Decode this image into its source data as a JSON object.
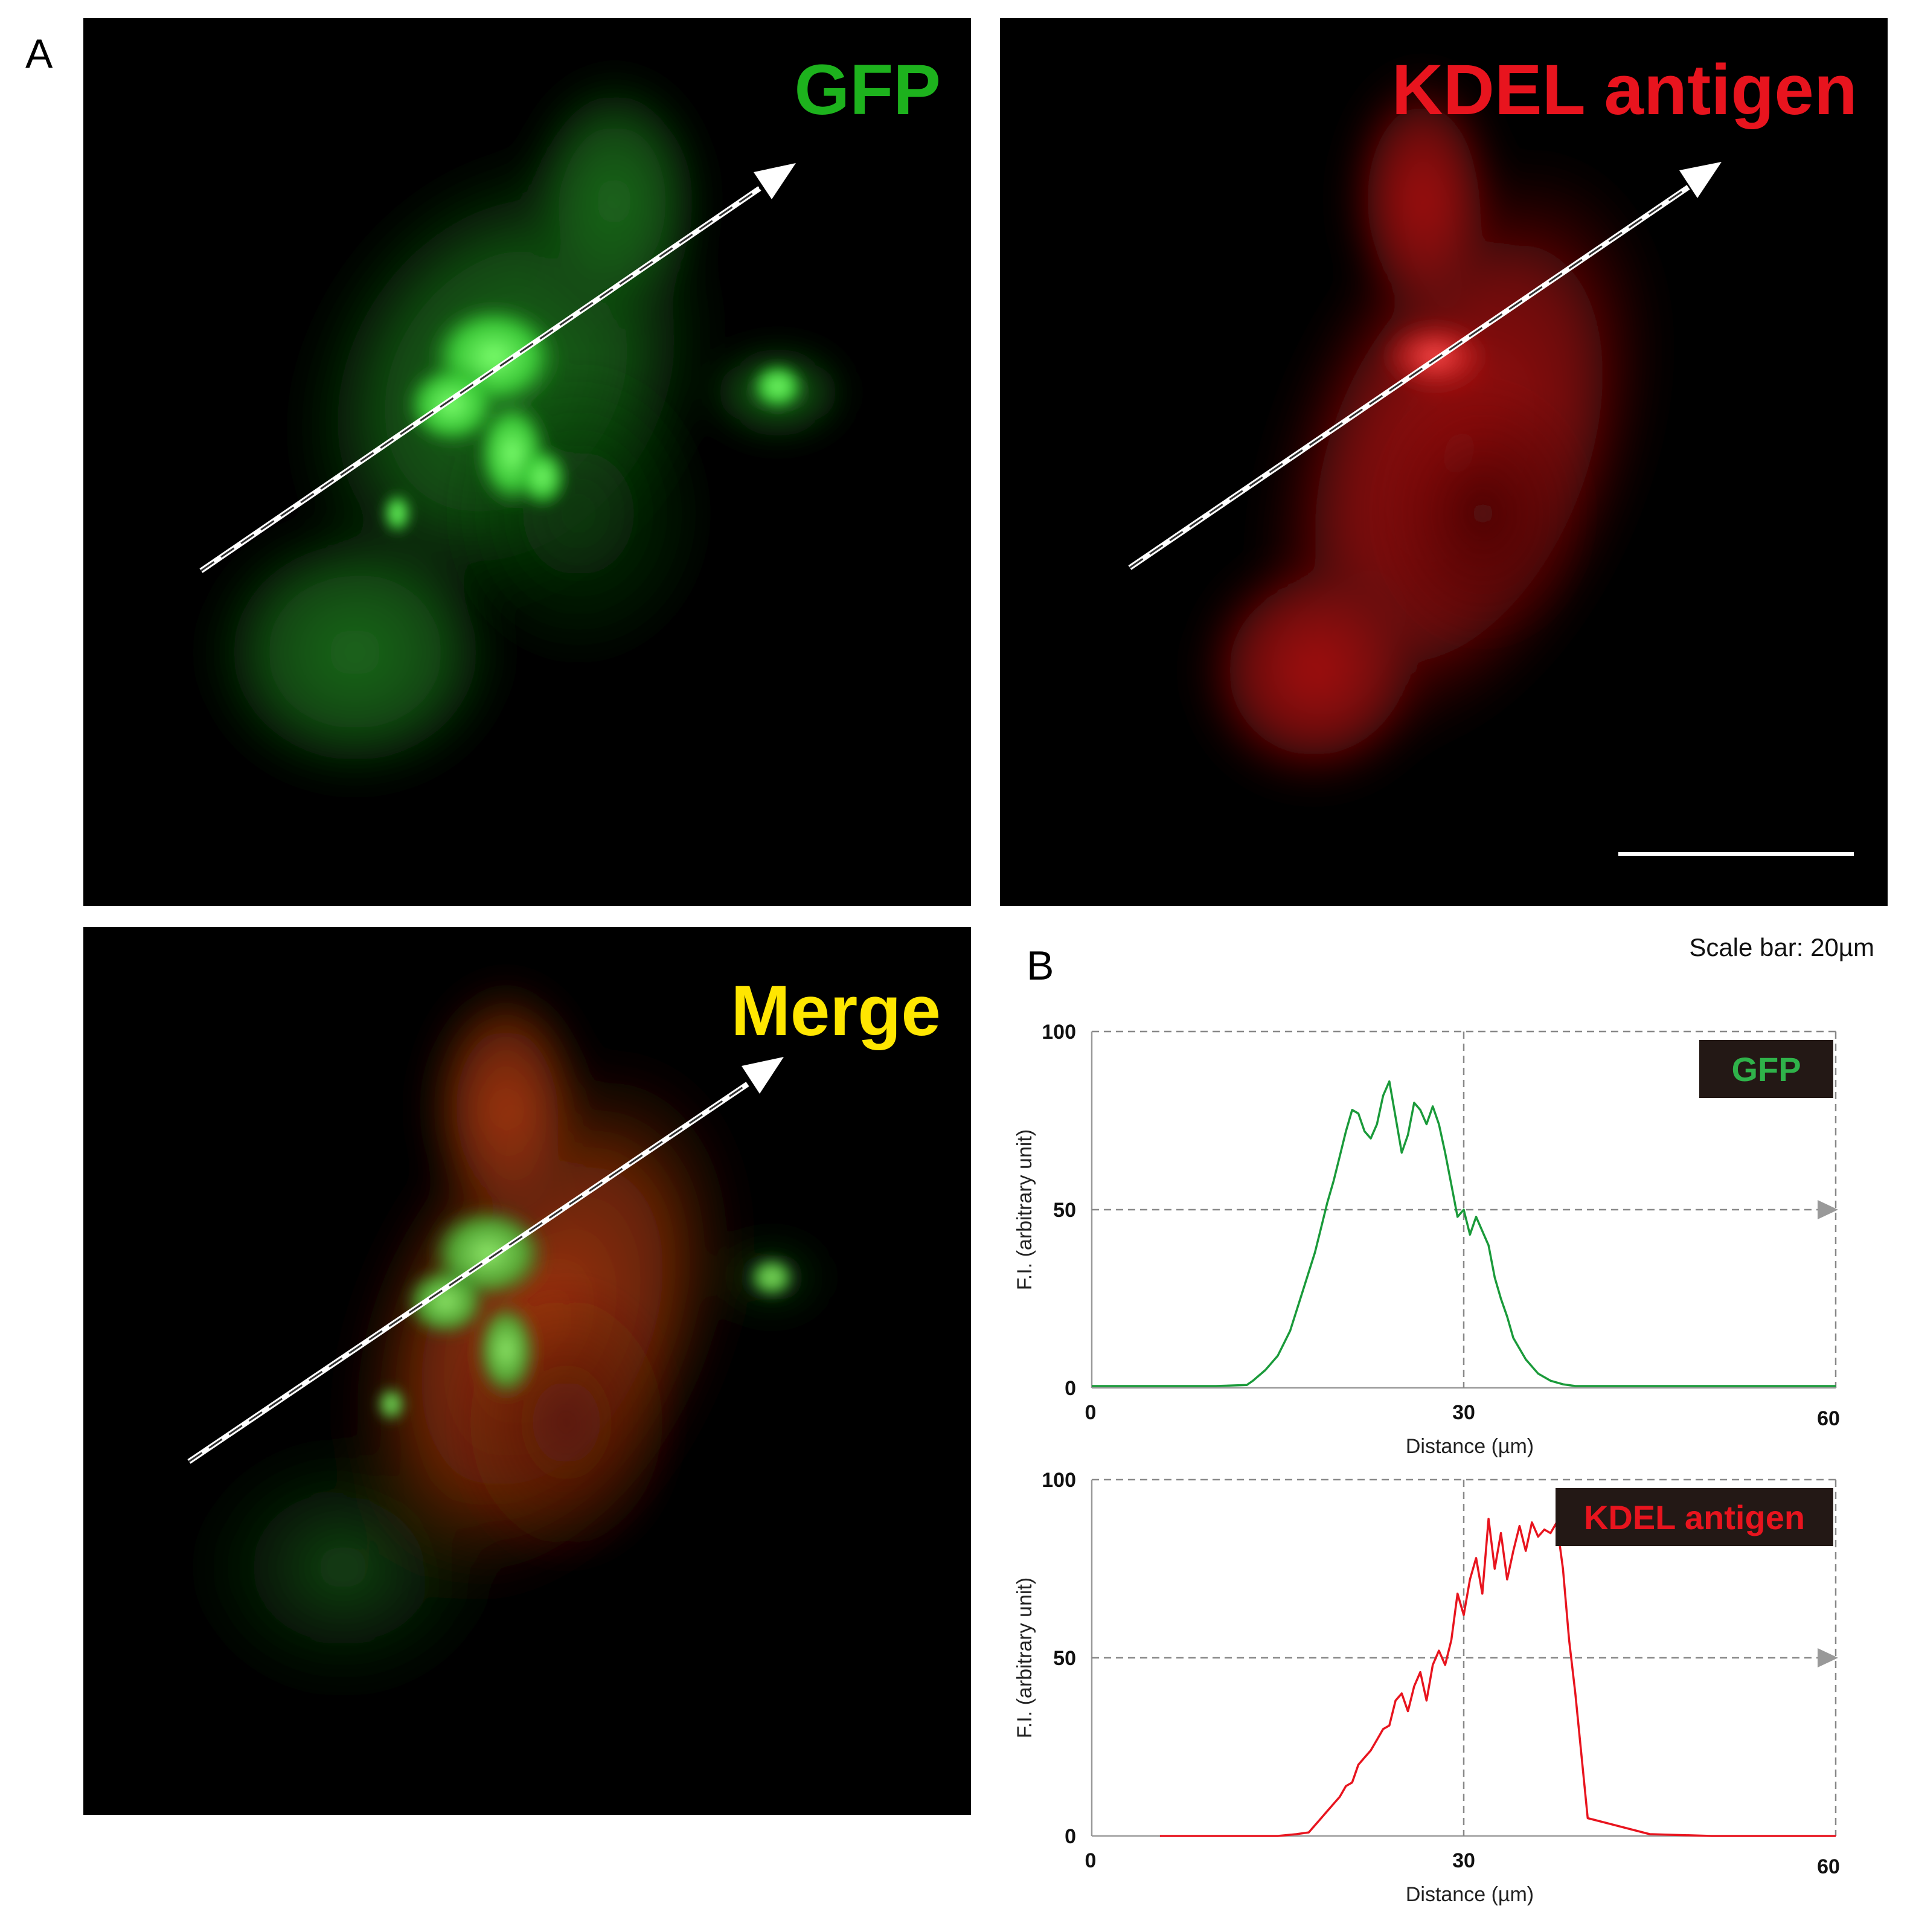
{
  "panel_a": {
    "letter": "A",
    "images": [
      {
        "label": "GFP",
        "color": "#1db21d"
      },
      {
        "label": "KDEL antigen",
        "color": "#e8141e"
      },
      {
        "label": "Merge",
        "color": "#ffe600"
      }
    ],
    "scale_bar_text": "Scale bar: 20µm"
  },
  "panel_b": {
    "letter": "B"
  },
  "chart_data": [
    {
      "type": "line",
      "legend": "GFP",
      "legend_placement": "top-right",
      "xlabel": "Distance (µm)",
      "ylabel": "F.I. (arbitrary unit)",
      "xlim": [
        0,
        60
      ],
      "ylim": [
        0,
        100
      ],
      "x_ticks": [
        "0",
        "30",
        "60"
      ],
      "y_ticks": [
        "0",
        "50",
        "100"
      ],
      "color": "#1a9a3a",
      "series": [
        {
          "x": [
            0,
            5,
            10,
            12.5,
            13,
            14,
            15,
            16,
            17,
            18,
            18.5,
            19,
            19.5,
            20,
            20.5,
            21,
            21.5,
            22,
            22.5,
            23,
            23.5,
            24,
            24.5,
            25,
            25.5,
            26,
            26.5,
            27,
            27.5,
            28,
            28.5,
            29,
            29.5,
            30,
            30.5,
            31,
            31.5,
            32,
            32.5,
            33,
            33.5,
            34,
            35,
            36,
            37,
            38,
            39,
            40,
            45,
            50,
            55,
            60
          ],
          "y": [
            0.5,
            0.5,
            0.5,
            0.8,
            2,
            5,
            9,
            16,
            27,
            38,
            45,
            52,
            58,
            65,
            72,
            78,
            77,
            72,
            70,
            74,
            82,
            86,
            76,
            66,
            71,
            80,
            78,
            74,
            79,
            74,
            66,
            57,
            48,
            50,
            43,
            48,
            44,
            40,
            31,
            25,
            20,
            14,
            8,
            4,
            2,
            1,
            0.5,
            0.5,
            0.5,
            0.5,
            0.5,
            0.5
          ]
        }
      ]
    },
    {
      "type": "line",
      "legend": "KDEL antigen",
      "legend_placement": "top-right",
      "xlabel": "Distance (µm)",
      "ylabel": "F.I. (arbitrary unit)",
      "xlim": [
        0,
        60
      ],
      "ylim": [
        0,
        100
      ],
      "x_ticks": [
        "0",
        "30",
        "60"
      ],
      "y_ticks": [
        "0",
        "50",
        "100"
      ],
      "color": "#e8141e",
      "series": [
        {
          "x": [
            5.5,
            10,
            15,
            16.5,
            17.5,
            18,
            18.5,
            19,
            19.5,
            20,
            20.5,
            21,
            21.5,
            22,
            22.5,
            23,
            23.5,
            24,
            24.5,
            25,
            25.5,
            26,
            26.5,
            27,
            27.5,
            28,
            28.5,
            29,
            29.5,
            30,
            30.5,
            31,
            31.5,
            32,
            32.5,
            33,
            33.5,
            34,
            34.5,
            35,
            35.5,
            36,
            36.5,
            37,
            37.5,
            38,
            38.5,
            39,
            40,
            45,
            50,
            55,
            60
          ],
          "y": [
            0,
            0,
            0,
            0.5,
            1,
            3,
            5,
            7,
            9,
            11,
            14,
            15,
            20,
            22,
            24,
            27,
            30,
            31,
            38,
            40,
            35,
            42,
            46,
            38,
            48,
            52,
            48,
            55,
            68,
            62,
            72,
            78,
            68,
            89,
            75,
            85,
            72,
            80,
            87,
            80,
            88,
            84,
            86,
            85,
            88,
            75,
            55,
            40,
            5,
            0.5,
            0,
            0,
            0
          ]
        }
      ]
    }
  ]
}
